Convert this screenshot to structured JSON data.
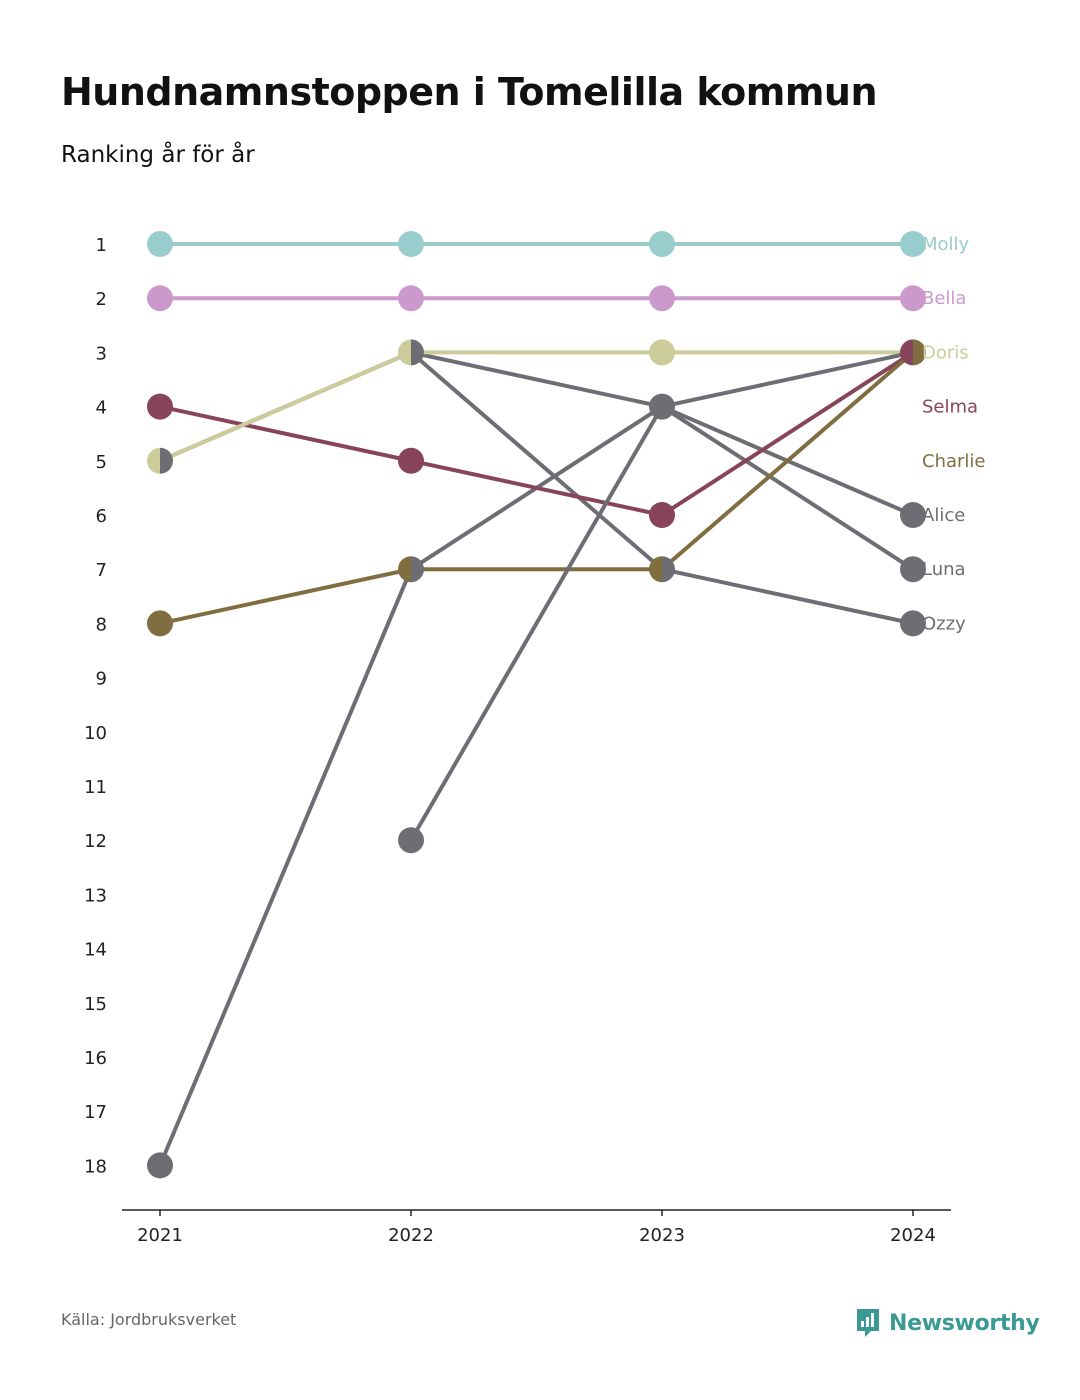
{
  "header": {
    "title": "Hundnamnstoppen i Tomelilla kommun",
    "subtitle": "Ranking år för år"
  },
  "footer": {
    "source": "Källa: Jordbruksverket",
    "logo_text": "Newsworthy"
  },
  "chart_data": {
    "type": "line",
    "title": "Hundnamnstoppen i Tomelilla kommun",
    "subtitle": "Ranking år för år",
    "x": [
      "2021",
      "2022",
      "2023",
      "2024"
    ],
    "ylim": [
      1,
      18
    ],
    "y_reversed": true,
    "y_ticks": [
      1,
      2,
      3,
      4,
      5,
      6,
      7,
      8,
      9,
      10,
      11,
      12,
      13,
      14,
      15,
      16,
      17,
      18
    ],
    "grid": false,
    "legend": "labels at line ends (right)",
    "series": [
      {
        "name": "Alice",
        "color": "#6e6d74",
        "values": [
          18,
          7,
          4,
          6
        ]
      },
      {
        "name": "Luna",
        "color": "#6e6d74",
        "values": [
          null,
          3,
          4,
          7
        ]
      },
      {
        "name": "Ozzy",
        "color": "#6e6d74",
        "values": [
          5,
          3,
          7,
          8
        ]
      },
      {
        "name": "Selma",
        "color": "#87445a",
        "values": [
          4,
          5,
          6,
          3
        ]
      },
      {
        "name": "Charlie",
        "color": "#806d40",
        "values": [
          8,
          7,
          7,
          3
        ]
      },
      {
        "name": "Doris",
        "color": "#cbcc9a",
        "values": [
          5,
          3,
          3,
          3
        ]
      },
      {
        "name": "Bella",
        "color": "#cc99cc",
        "values": [
          2,
          2,
          2,
          2
        ]
      },
      {
        "name": "Molly",
        "color": "#99cccc",
        "values": [
          1,
          1,
          1,
          1
        ]
      },
      {
        "name": "",
        "color": "#6e6d74",
        "values": [
          null,
          12,
          4,
          3
        ]
      }
    ]
  }
}
